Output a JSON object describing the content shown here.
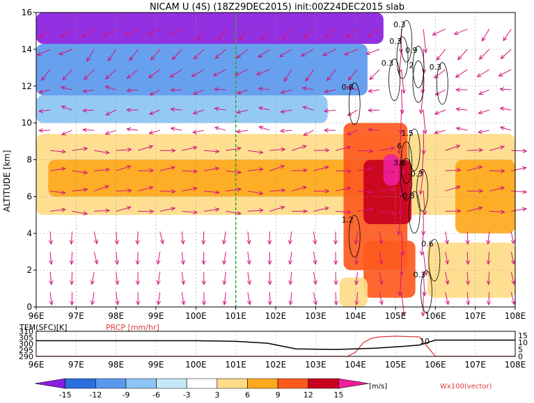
{
  "chart_data": {
    "type": "heatmap",
    "title": "NICAM U (4S) (18Z29DEC2015) init:00Z24DEC2015 slab",
    "ylabel": "ALTITUDE [km]",
    "x_ticks": [
      "96E",
      "97E",
      "98E",
      "99E",
      "100E",
      "101E",
      "102E",
      "103E",
      "104E",
      "105E",
      "106E",
      "107E",
      "108E"
    ],
    "y_ticks": [
      "0",
      "2",
      "4",
      "6",
      "8",
      "10",
      "12",
      "14",
      "16"
    ],
    "xlim": [
      96,
      108
    ],
    "ylim": [
      0,
      16
    ],
    "grid": true,
    "marker_line_lon": 101,
    "colorbar": {
      "labels": [
        "-15",
        "-12",
        "-9",
        "-6",
        "-3",
        "3",
        "6",
        "9",
        "12",
        "15"
      ],
      "colors": [
        "#8a1ee0",
        "#2a6ee0",
        "#5a98ee",
        "#8cc4f4",
        "#c4e8f8",
        "#ffffff",
        "#fedc88",
        "#fea81e",
        "#fe5a1e",
        "#c8001e",
        "#f01e9a"
      ],
      "unit": "[m/s]"
    },
    "vector_label": "Wx100(vector)",
    "contour_labels": [
      "0.3",
      "0.3",
      "0.9",
      "2",
      "0.3",
      "0.3",
      "0.8",
      "1.5",
      "6",
      "3.6",
      "-0.3",
      "-0.3",
      "1.2",
      "0.6",
      "0.3"
    ],
    "bands": [
      {
        "ymin": 14.3,
        "ymax": 16,
        "xmin": 96,
        "xmax": 104.7,
        "level": 0
      },
      {
        "ymin": 11.5,
        "ymax": 14.3,
        "xmin": 96,
        "xmax": 104.3,
        "level": 2
      },
      {
        "ymin": 10.0,
        "ymax": 11.5,
        "xmin": 96,
        "xmax": 103.3,
        "level": 3
      },
      {
        "ymin": 5.0,
        "ymax": 9.4,
        "xmin": 96,
        "xmax": 108,
        "level": 6
      },
      {
        "ymin": 6.0,
        "ymax": 8.0,
        "xmin": 96.3,
        "xmax": 104.5,
        "level": 7
      },
      {
        "ymin": 2.0,
        "ymax": 10.0,
        "xmin": 103.7,
        "xmax": 105.3,
        "level": 8
      },
      {
        "ymin": 4.5,
        "ymax": 8.0,
        "xmin": 104.2,
        "xmax": 105.4,
        "level": 9
      },
      {
        "ymin": 6.6,
        "ymax": 8.3,
        "xmin": 104.7,
        "xmax": 105.1,
        "level": 10
      },
      {
        "ymin": 0.5,
        "ymax": 3.6,
        "xmin": 104.2,
        "xmax": 105.5,
        "level": 8
      },
      {
        "ymin": 0.0,
        "ymax": 1.6,
        "xmin": 103.6,
        "xmax": 104.3,
        "level": 6
      },
      {
        "ymin": 0.5,
        "ymax": 3.5,
        "xmin": 105.8,
        "xmax": 108,
        "level": 6
      },
      {
        "ymin": 4.0,
        "ymax": 8.0,
        "xmin": 106.5,
        "xmax": 108,
        "level": 7
      }
    ],
    "lower_panel": {
      "labels": {
        "left": "TEM(SFC)[K]",
        "right": "PRCP [mm/hr]"
      },
      "y_ticks_left": [
        "310",
        "305",
        "300",
        "295",
        "290"
      ],
      "y_ticks_right": [
        "15",
        "10",
        "5",
        "0"
      ],
      "annotation": "10",
      "tem_series": {
        "x": [
          96,
          100,
          101,
          101.8,
          102.5,
          103.5,
          104.5,
          105.2,
          105.6,
          106,
          108
        ],
        "y": [
          302.5,
          302.5,
          302,
          300.5,
          296,
          295.5,
          296.5,
          298,
          299,
          303,
          303
        ]
      },
      "prcp_series": {
        "x": [
          96,
          103.8,
          104,
          104.2,
          104.4,
          104.6,
          105,
          105.6,
          106,
          108
        ],
        "y": [
          0,
          0,
          3,
          10,
          13,
          14,
          14.5,
          14,
          0,
          0
        ]
      }
    }
  }
}
